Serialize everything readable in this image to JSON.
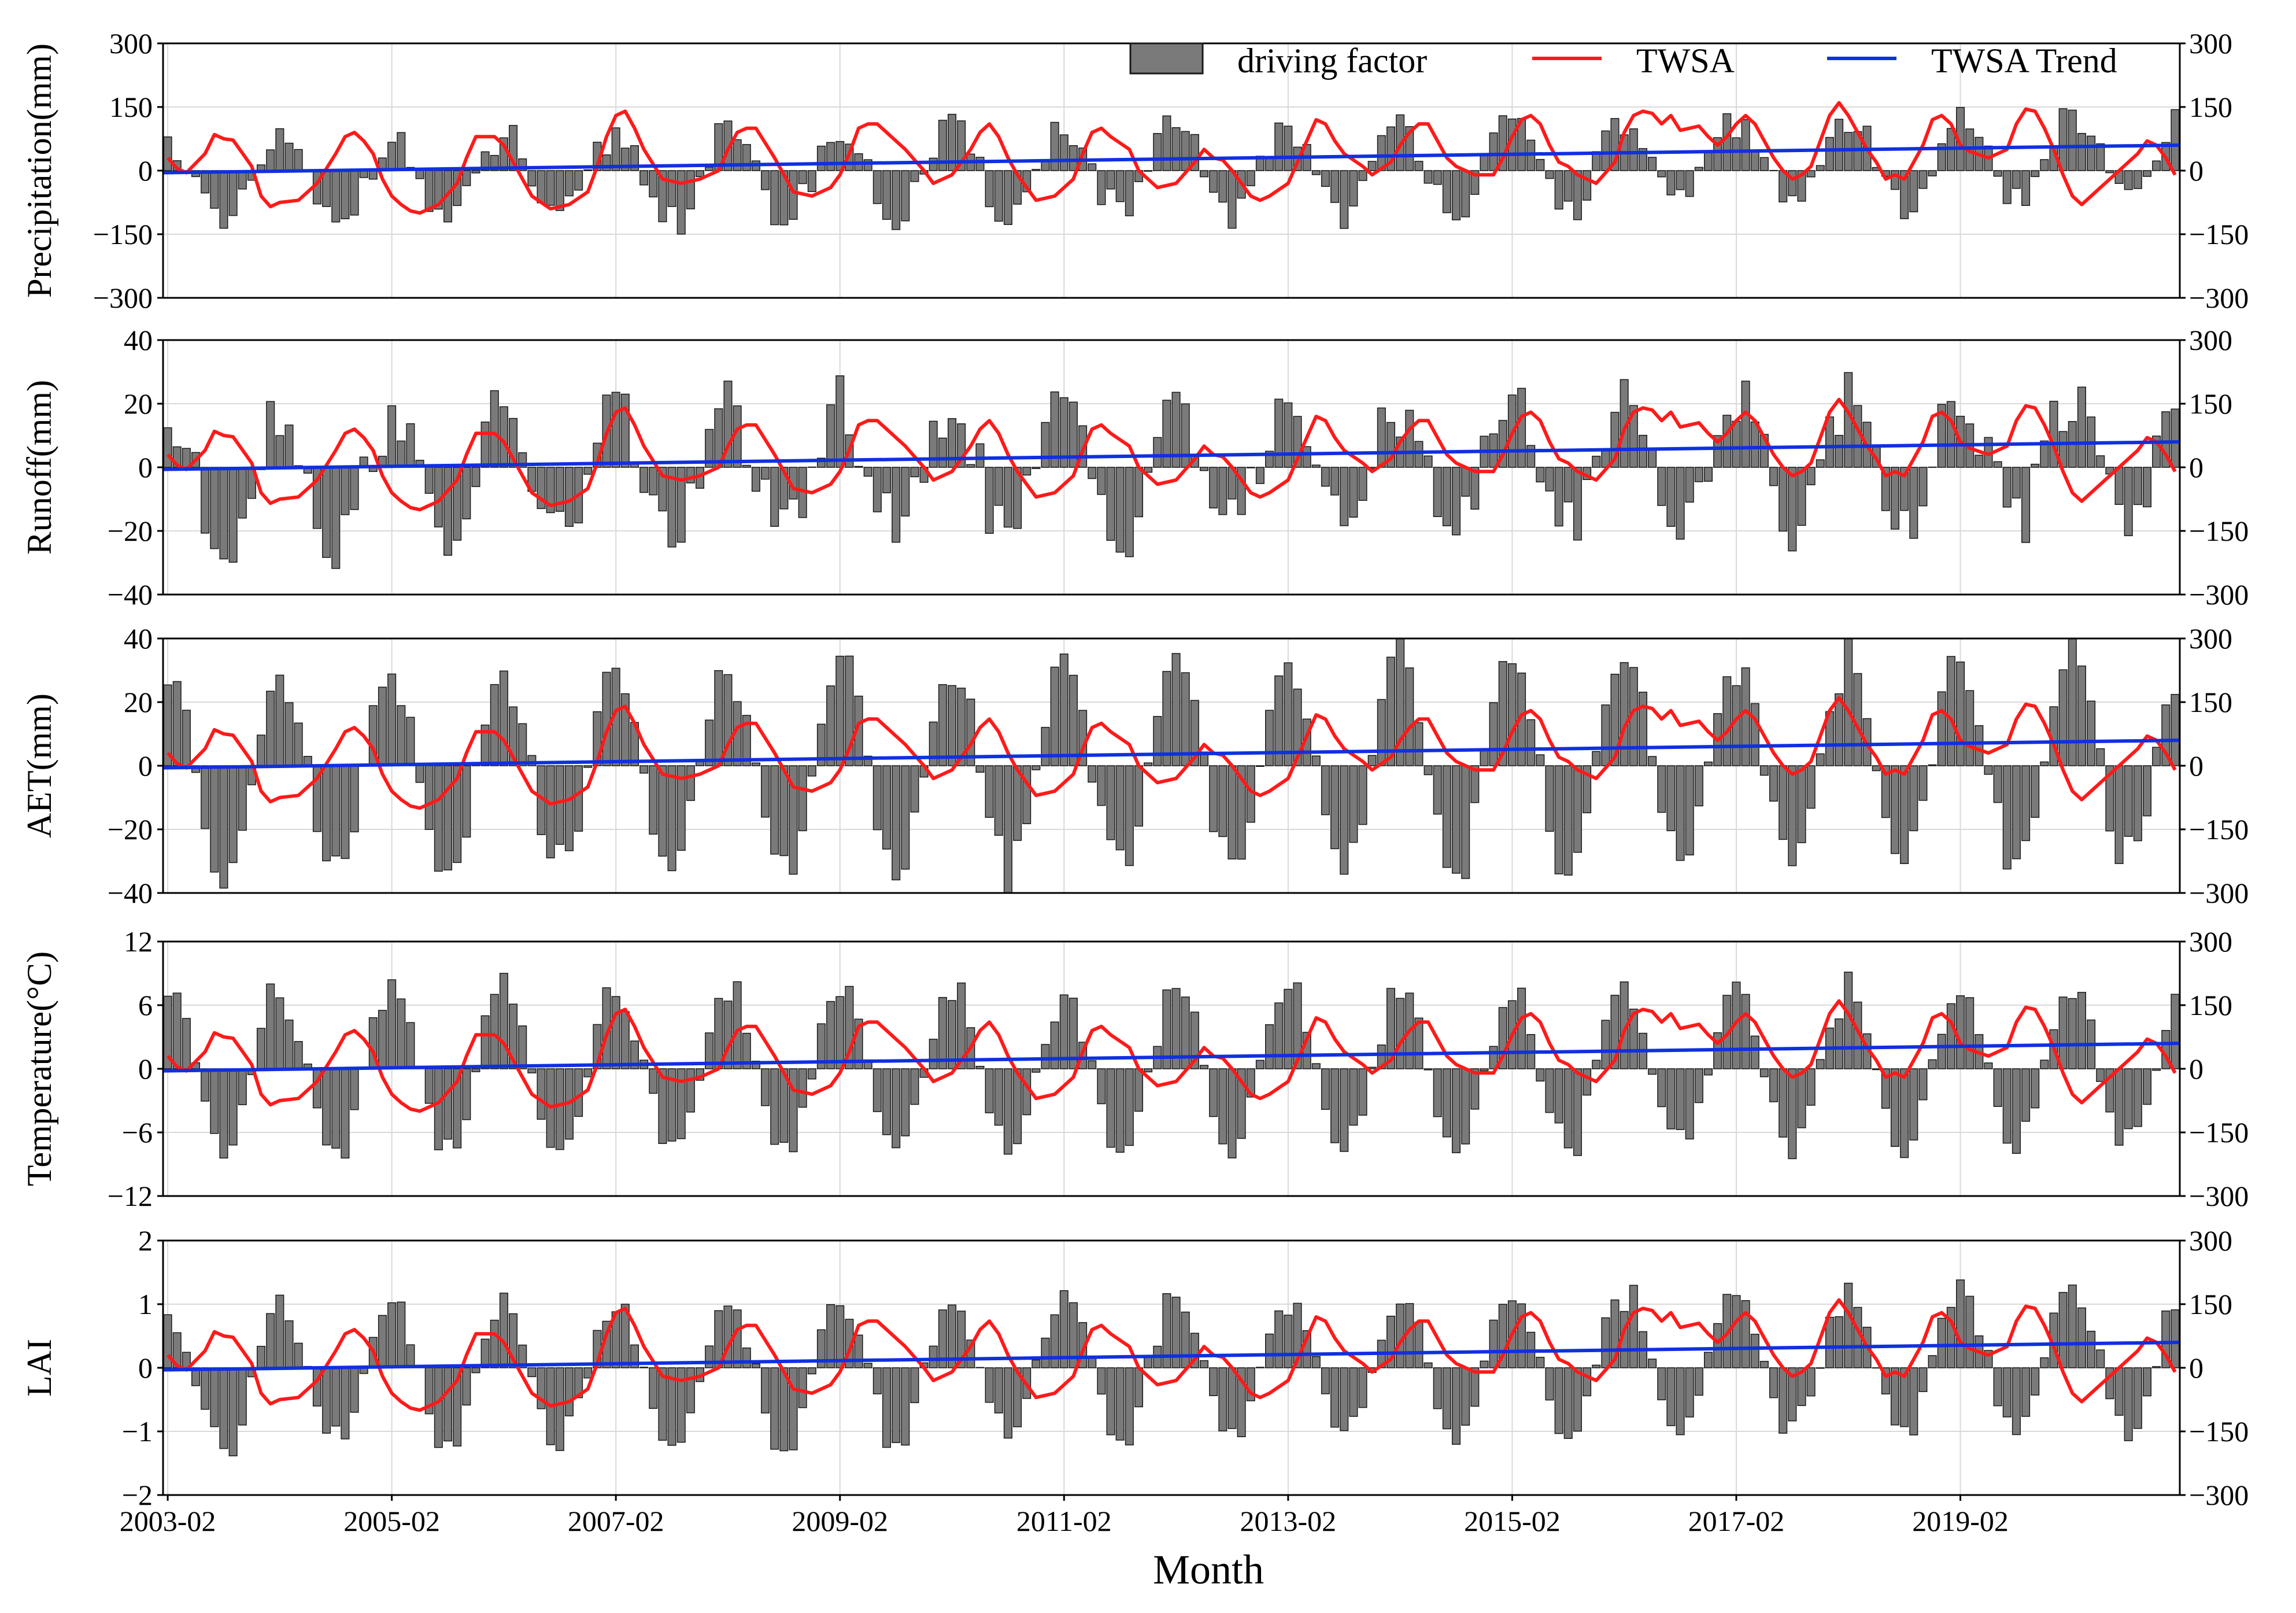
{
  "figure": {
    "xlabel": "Month"
  },
  "legend": {
    "bar_label": "driving factor",
    "line_label": "TWSA",
    "trend_label": "TWSA Trend",
    "placement": "top-right"
  },
  "colors": {
    "bar": "#7a7a7a",
    "bar_edge": "#1a1a1a",
    "twsa": "#ff1a1a",
    "trend": "#1030e0",
    "grid": "#d9d9d9"
  },
  "chart_data": {
    "type": "bar",
    "x": {
      "start": "2003-02",
      "n_months": 216,
      "tick_labels": [
        "2003-02",
        "2005-02",
        "2007-02",
        "2009-02",
        "2011-02",
        "2013-02",
        "2015-02",
        "2017-02",
        "2019-02"
      ]
    },
    "twsa": {
      "name": "TWSA",
      "unit": "mm",
      "ylim": [
        -300,
        300
      ],
      "right_ticks": [
        "300",
        "150",
        "0",
        "−150",
        "−300"
      ],
      "trend": {
        "name": "TWSA Trend",
        "start": -5,
        "end": 60
      },
      "keypoints": [
        [
          0,
          30
        ],
        [
          1,
          5
        ],
        [
          2,
          -5
        ],
        [
          4,
          40
        ],
        [
          5,
          85
        ],
        [
          6,
          75
        ],
        [
          7,
          72
        ],
        [
          9,
          10
        ],
        [
          10,
          -60
        ],
        [
          11,
          -85
        ],
        [
          12,
          -75
        ],
        [
          14,
          -70
        ],
        [
          16,
          -30
        ],
        [
          18,
          40
        ],
        [
          19,
          80
        ],
        [
          20,
          90
        ],
        [
          21,
          70
        ],
        [
          22,
          40
        ],
        [
          23,
          -20
        ],
        [
          24,
          -60
        ],
        [
          25,
          -80
        ],
        [
          26,
          -95
        ],
        [
          27,
          -100
        ],
        [
          29,
          -80
        ],
        [
          31,
          -30
        ],
        [
          32,
          30
        ],
        [
          33,
          80
        ],
        [
          35,
          80
        ],
        [
          36,
          60
        ],
        [
          37,
          20
        ],
        [
          38,
          -20
        ],
        [
          39,
          -60
        ],
        [
          41,
          -90
        ],
        [
          43,
          -80
        ],
        [
          45,
          -50
        ],
        [
          46,
          10
        ],
        [
          47,
          80
        ],
        [
          48,
          130
        ],
        [
          49,
          140
        ],
        [
          50,
          100
        ],
        [
          51,
          50
        ],
        [
          53,
          -20
        ],
        [
          55,
          -30
        ],
        [
          57,
          -20
        ],
        [
          59,
          0
        ],
        [
          60,
          50
        ],
        [
          61,
          90
        ],
        [
          62,
          100
        ],
        [
          63,
          100
        ],
        [
          65,
          30
        ],
        [
          67,
          -50
        ],
        [
          69,
          -60
        ],
        [
          71,
          -40
        ],
        [
          72,
          -10
        ],
        [
          73,
          40
        ],
        [
          74,
          100
        ],
        [
          75,
          110
        ],
        [
          76,
          110
        ],
        [
          77,
          90
        ],
        [
          79,
          50
        ],
        [
          81,
          0
        ],
        [
          82,
          -30
        ],
        [
          84,
          -10
        ],
        [
          86,
          50
        ],
        [
          87,
          90
        ],
        [
          88,
          110
        ],
        [
          89,
          80
        ],
        [
          90,
          30
        ],
        [
          91,
          -10
        ],
        [
          93,
          -70
        ],
        [
          95,
          -60
        ],
        [
          97,
          -20
        ],
        [
          98,
          40
        ],
        [
          99,
          90
        ],
        [
          100,
          100
        ],
        [
          101,
          80
        ],
        [
          103,
          50
        ],
        [
          104,
          0
        ],
        [
          106,
          -40
        ],
        [
          108,
          -30
        ],
        [
          110,
          20
        ],
        [
          111,
          50
        ],
        [
          112,
          30
        ],
        [
          113,
          25
        ],
        [
          114,
          0
        ],
        [
          115,
          -30
        ],
        [
          116,
          -60
        ],
        [
          117,
          -70
        ],
        [
          118,
          -60
        ],
        [
          120,
          -30
        ],
        [
          121,
          20
        ],
        [
          122,
          70
        ],
        [
          123,
          120
        ],
        [
          124,
          110
        ],
        [
          125,
          70
        ],
        [
          126,
          40
        ],
        [
          128,
          10
        ],
        [
          129,
          -10
        ],
        [
          131,
          20
        ],
        [
          132,
          60
        ],
        [
          133,
          90
        ],
        [
          134,
          110
        ],
        [
          135,
          110
        ],
        [
          136,
          70
        ],
        [
          137,
          30
        ],
        [
          138,
          10
        ],
        [
          140,
          -10
        ],
        [
          142,
          -10
        ],
        [
          143,
          30
        ],
        [
          144,
          80
        ],
        [
          145,
          120
        ],
        [
          146,
          130
        ],
        [
          147,
          110
        ],
        [
          148,
          60
        ],
        [
          149,
          20
        ],
        [
          150,
          10
        ],
        [
          151,
          -10
        ],
        [
          152,
          -20
        ],
        [
          153,
          -30
        ],
        [
          155,
          20
        ],
        [
          156,
          90
        ],
        [
          157,
          130
        ],
        [
          158,
          140
        ],
        [
          159,
          135
        ],
        [
          160,
          110
        ],
        [
          161,
          130
        ],
        [
          162,
          95
        ],
        [
          163,
          100
        ],
        [
          164,
          105
        ],
        [
          165,
          80
        ],
        [
          166,
          60
        ],
        [
          167,
          80
        ],
        [
          168,
          110
        ],
        [
          169,
          130
        ],
        [
          170,
          110
        ],
        [
          171,
          70
        ],
        [
          172,
          30
        ],
        [
          173,
          0
        ],
        [
          174,
          -20
        ],
        [
          175,
          -10
        ],
        [
          176,
          10
        ],
        [
          177,
          70
        ],
        [
          178,
          130
        ],
        [
          179,
          160
        ],
        [
          180,
          130
        ],
        [
          181,
          90
        ],
        [
          182,
          50
        ],
        [
          183,
          20
        ],
        [
          184,
          -20
        ],
        [
          185,
          -10
        ],
        [
          186,
          -20
        ],
        [
          188,
          60
        ],
        [
          189,
          120
        ],
        [
          190,
          130
        ],
        [
          191,
          110
        ],
        [
          192,
          60
        ],
        [
          193,
          45
        ],
        [
          195,
          30
        ],
        [
          197,
          50
        ],
        [
          198,
          110
        ],
        [
          199,
          145
        ],
        [
          200,
          140
        ],
        [
          201,
          100
        ],
        [
          202,
          50
        ],
        [
          203,
          -10
        ],
        [
          204,
          -60
        ],
        [
          205,
          -80
        ],
        [
          206,
          -60
        ],
        [
          208,
          -20
        ],
        [
          210,
          20
        ],
        [
          211,
          40
        ],
        [
          212,
          70
        ],
        [
          213,
          60
        ],
        [
          214,
          30
        ],
        [
          215,
          -10
        ]
      ]
    },
    "panels": [
      {
        "name": "Precipitation",
        "ylabel": "Precipitation(mm)",
        "unit": "mm",
        "ylim": [
          -300,
          300
        ],
        "left_ticks": [
          "300",
          "150",
          "0",
          "−150",
          "−300"
        ],
        "seasonal_amplitude": 100,
        "drift_per_month": 0.3,
        "noise": 38,
        "clip": 280
      },
      {
        "name": "Runoff",
        "ylabel": "Runoff(mm)",
        "unit": "mm",
        "ylim": [
          -40,
          40
        ],
        "left_ticks": [
          "40",
          "20",
          "0",
          "−20",
          "−40"
        ],
        "seasonal_amplitude": 20,
        "drift_per_month": 0.04,
        "noise": 9,
        "clip": 40
      },
      {
        "name": "AET",
        "ylabel": "AET(mm)",
        "unit": "mm",
        "ylim": [
          -40,
          40
        ],
        "left_ticks": [
          "40",
          "20",
          "0",
          "−20",
          "−40"
        ],
        "seasonal_amplitude": 32,
        "drift_per_month": 0.02,
        "noise": 5,
        "clip": 40
      },
      {
        "name": "Temperature",
        "ylabel": "Temperature(°C)",
        "unit": "°C",
        "ylim": [
          -12,
          12
        ],
        "left_ticks": [
          "12",
          "6",
          "0",
          "−6",
          "−12"
        ],
        "seasonal_amplitude": 7.5,
        "drift_per_month": 0.0,
        "noise": 1.2,
        "clip": 11.9
      },
      {
        "name": "LAI",
        "ylabel": "LAI",
        "unit": "",
        "ylim": [
          -2,
          2
        ],
        "left_ticks": [
          "2",
          "1",
          "0",
          "−1",
          "−2"
        ],
        "seasonal_amplitude": 1.1,
        "drift_per_month": 0.0015,
        "noise": 0.18,
        "clip": 1.9
      }
    ]
  }
}
